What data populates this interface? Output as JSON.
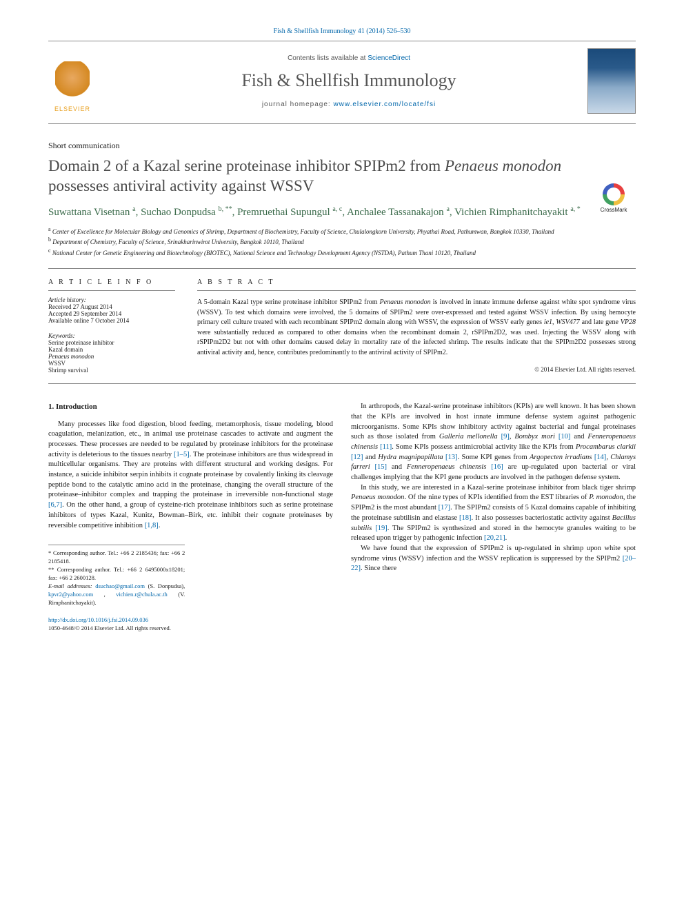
{
  "journal_ref": "Fish & Shellfish Immunology 41 (2014) 526–530",
  "header": {
    "contents_prefix": "Contents lists available at ",
    "contents_link": "ScienceDirect",
    "journal_name": "Fish & Shellfish Immunology",
    "homepage_prefix": "journal homepage: ",
    "homepage_link": "www.elsevier.com/locate/fsi",
    "publisher_logo_text": "ELSEVIER"
  },
  "crossmark_label": "CrossMark",
  "article_type": "Short communication",
  "title_parts": {
    "pre": "Domain 2 of a Kazal serine proteinase inhibitor SPIPm2 from ",
    "species": "Penaeus monodon",
    "post": " possesses antiviral activity against WSSV"
  },
  "authors_html": "Suwattana Visetnan <sup>a</sup>, Suchao Donpudsa <sup>b, **</sup>, Premruethai Supungul <sup>a, c</sup>, Anchalee Tassanakajon <sup>a</sup>, Vichien Rimphanitchayakit <sup>a, *</sup>",
  "affiliations": [
    {
      "sup": "a",
      "text": "Center of Excellence for Molecular Biology and Genomics of Shrimp, Department of Biochemistry, Faculty of Science, Chulalongkorn University, Phyathai Road, Pathumwan, Bangkok 10330, Thailand"
    },
    {
      "sup": "b",
      "text": "Department of Chemistry, Faculty of Science, Srinakharinwirot University, Bangkok 10110, Thailand"
    },
    {
      "sup": "c",
      "text": "National Center for Genetic Engineering and Biotechnology (BIOTEC), National Science and Technology Development Agency (NSTDA), Pathum Thani 10120, Thailand"
    }
  ],
  "article_info": {
    "heading": "A R T I C L E   I N F O",
    "history_label": "Article history:",
    "history": [
      "Received 27 August 2014",
      "Accepted 29 September 2014",
      "Available online 7 October 2014"
    ],
    "keywords_label": "Keywords:",
    "keywords": [
      "Serine proteinase inhibitor",
      "Kazal domain",
      "Penaeus monodon",
      "WSSV",
      "Shrimp survival"
    ]
  },
  "abstract": {
    "heading": "A B S T R A C T",
    "text": "A 5-domain Kazal type serine proteinase inhibitor SPIPm2 from Penaeus monodon is involved in innate immune defense against white spot syndrome virus (WSSV). To test which domains were involved, the 5 domains of SPIPm2 were over-expressed and tested against WSSV infection. By using hemocyte primary cell culture treated with each recombinant SPIPm2 domain along with WSSV, the expression of WSSV early genes ie1, WSV477 and late gene VP28 were substantially reduced as compared to other domains when the recombinant domain 2, rSPIPm2D2, was used. Injecting the WSSV along with rSPIPm2D2 but not with other domains caused delay in mortality rate of the infected shrimp. The results indicate that the SPIPm2D2 possesses strong antiviral activity and, hence, contributes predominantly to the antiviral activity of SPIPm2.",
    "copyright": "© 2014 Elsevier Ltd. All rights reserved."
  },
  "section1_heading": "1. Introduction",
  "col1": {
    "p1": "Many processes like food digestion, blood feeding, metamorphosis, tissue modeling, blood coagulation, melanization, etc., in animal use proteinase cascades to activate and augment the processes. These processes are needed to be regulated by proteinase inhibitors for the proteinase activity is deleterious to the tissues nearby [1–5]. The proteinase inhibitors are thus widespread in multicellular organisms. They are proteins with different structural and working designs. For instance, a suicide inhibitor serpin inhibits it cognate proteinase by covalently linking its cleavage peptide bond to the catalytic amino acid in the proteinase, changing the overall structure of the proteinase–inhibitor complex and trapping the proteinase in irreversible non-functional stage [6,7]. On the other hand, a group of cysteine-rich proteinase inhibitors such as serine proteinase inhibitors of types Kazal, Kunitz, Bowman–Birk, etc. inhibit their cognate proteinases by reversible competitive inhibition [1,8]."
  },
  "col2": {
    "p1": "In arthropods, the Kazal-serine proteinase inhibitors (KPIs) are well known. It has been shown that the KPIs are involved in host innate immune defense system against pathogenic microorganisms. Some KPIs show inhibitory activity against bacterial and fungal proteinases such as those isolated from Galleria mellonella [9], Bombyx mori [10] and Fenneropenaeus chinensis [11]. Some KPIs possess antimicrobial activity like the KPIs from Procambarus clarkii [12] and Hydra magnipapillata [13]. Some KPI genes from Argopecten irradians [14], Chlamys farreri [15] and Fenneropenaeus chinensis [16] are up-regulated upon bacterial or viral challenges implying that the KPI gene products are involved in the pathogen defense system.",
    "p2": "In this study, we are interested in a Kazal-serine proteinase inhibitor from black tiger shrimp Penaeus monodon. Of the nine types of KPIs identified from the EST libraries of P. monodon, the SPIPm2 is the most abundant [17]. The SPIPm2 consists of 5 Kazal domains capable of inhibiting the proteinase subtilisin and elastase [18]. It also possesses bacteriostatic activity against Bacillus subtilis [19]. The SPIPm2 is synthesized and stored in the hemocyte granules waiting to be released upon trigger by pathogenic infection [20,21].",
    "p3": "We have found that the expression of SPIPm2 is up-regulated in shrimp upon white spot syndrome virus (WSSV) infection and the WSSV replication is suppressed by the SPIPm2 [20–22]. Since there"
  },
  "footnotes": {
    "corr1": "* Corresponding author. Tel.: +66 2 2185436; fax: +66 2 2185418.",
    "corr2": "** Corresponding author. Tel.: +66 2 6495000x18201; fax: +66 2 2600128.",
    "email_label": "E-mail addresses:",
    "emails": [
      {
        "addr": "dsuchao@gmail.com",
        "who": "(S. Donpudsa)"
      },
      {
        "addr": "kpvr2@yahoo.com",
        "who": ""
      },
      {
        "addr": "vichien.r@chula.ac.th",
        "who": "(V. Rimphanitchayakit)."
      }
    ]
  },
  "doi": {
    "link": "http://dx.doi.org/10.1016/j.fsi.2014.09.036",
    "issn_line": "1050-4648/© 2014 Elsevier Ltd. All rights reserved."
  },
  "colors": {
    "link": "#0066aa",
    "author": "#3a6a4a",
    "title": "#4a4a4a",
    "rule": "#888888",
    "text": "#1a1a1a",
    "elsevier_orange": "#e8a020"
  }
}
